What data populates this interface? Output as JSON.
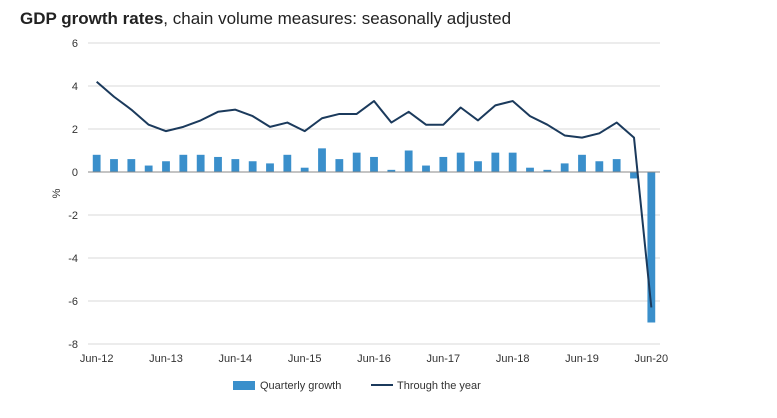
{
  "chart_data": {
    "type": "bar",
    "title": "GDP growth rates",
    "subtitle": "chain volume measures: seasonally adjusted",
    "ylabel": "%",
    "xlabel": "",
    "ylim": [
      -8,
      6
    ],
    "y_ticks": [
      6,
      4,
      2,
      0,
      -2,
      -4,
      -6,
      -8
    ],
    "grid": true,
    "legend_position": "bottom",
    "x_tick_labels": [
      "Jun-12",
      "Jun-13",
      "Jun-14",
      "Jun-15",
      "Jun-16",
      "Jun-17",
      "Jun-18",
      "Jun-19",
      "Jun-20"
    ],
    "categories": [
      "Jun-12",
      "Sep-12",
      "Dec-12",
      "Mar-13",
      "Jun-13",
      "Sep-13",
      "Dec-13",
      "Mar-14",
      "Jun-14",
      "Sep-14",
      "Dec-14",
      "Mar-15",
      "Jun-15",
      "Sep-15",
      "Dec-15",
      "Mar-16",
      "Jun-16",
      "Sep-16",
      "Dec-16",
      "Mar-17",
      "Jun-17",
      "Sep-17",
      "Dec-17",
      "Mar-18",
      "Jun-18",
      "Sep-18",
      "Dec-18",
      "Mar-19",
      "Jun-19",
      "Sep-19",
      "Dec-19",
      "Mar-20",
      "Jun-20"
    ],
    "series": [
      {
        "name": "Quarterly growth",
        "kind": "bar",
        "color": "#3a8fcb",
        "values": [
          0.8,
          0.6,
          0.6,
          0.3,
          0.5,
          0.8,
          0.8,
          0.7,
          0.6,
          0.5,
          0.4,
          0.8,
          0.2,
          1.1,
          0.6,
          0.9,
          0.7,
          0.1,
          1.0,
          0.3,
          0.7,
          0.9,
          0.5,
          0.9,
          0.9,
          0.2,
          0.1,
          0.4,
          0.8,
          0.5,
          0.6,
          -0.3,
          -7.0
        ]
      },
      {
        "name": "Through the year",
        "kind": "line",
        "color": "#1b3a5c",
        "values": [
          4.2,
          3.5,
          2.9,
          2.2,
          1.9,
          2.1,
          2.4,
          2.8,
          2.9,
          2.6,
          2.1,
          2.3,
          1.9,
          2.5,
          2.7,
          2.7,
          3.3,
          2.3,
          2.8,
          2.2,
          2.2,
          3.0,
          2.4,
          3.1,
          3.3,
          2.6,
          2.2,
          1.7,
          1.6,
          1.8,
          2.3,
          1.6,
          -6.3
        ]
      }
    ]
  }
}
